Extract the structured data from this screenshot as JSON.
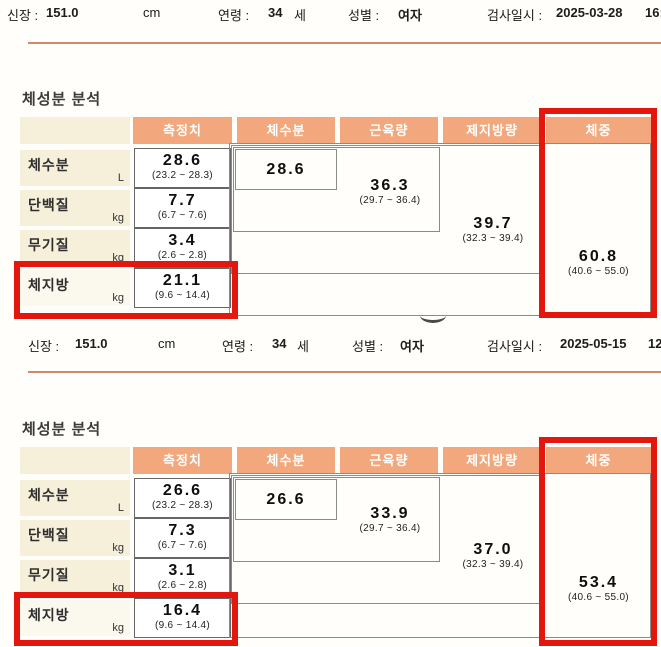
{
  "patient_rows": [
    {
      "height_label": "신장 :",
      "height_value": "151.0",
      "height_unit": "cm",
      "age_label": "연령 :",
      "age_value": "34",
      "age_unit": "세",
      "sex_label": "성별 :",
      "sex_value": "여자",
      "exam_label": "검사일시 :",
      "exam_date": "2025-03-28",
      "exam_time": "16:"
    },
    {
      "height_label": "신장 :",
      "height_value": "151.0",
      "height_unit": "cm",
      "age_label": "연령 :",
      "age_value": "34",
      "age_unit": "세",
      "sex_label": "성별 :",
      "sex_value": "여자",
      "exam_label": "검사일시 :",
      "exam_date": "2025-05-15",
      "exam_time": "12"
    }
  ],
  "tables": [
    {
      "title": "체성분 분석",
      "headers": [
        "측정치",
        "체수분",
        "근육량",
        "제지방량",
        "체중"
      ],
      "rows": [
        {
          "label": "체수분",
          "unit": "L",
          "value": "28.6",
          "range": "(23.2 ~ 28.3)"
        },
        {
          "label": "단백질",
          "unit": "kg",
          "value": "7.7",
          "range": "(6.7 ~ 7.6)"
        },
        {
          "label": "무기질",
          "unit": "kg",
          "value": "3.4",
          "range": "(2.6 ~ 2.8)"
        },
        {
          "label": "체지방",
          "unit": "kg",
          "value": "21.1",
          "range": "(9.6 ~ 14.4)"
        }
      ],
      "composition": {
        "body_water": {
          "value": "28.6"
        },
        "muscle": {
          "value": "36.3",
          "range": "(29.7 ~ 36.4)"
        },
        "lean_mass": {
          "value": "39.7",
          "range": "(32.3 ~ 39.4)"
        },
        "weight": {
          "value": "60.8",
          "range": "(40.6 ~ 55.0)"
        }
      }
    },
    {
      "title": "체성분 분석",
      "headers": [
        "측정치",
        "체수분",
        "근육량",
        "제지방량",
        "체중"
      ],
      "rows": [
        {
          "label": "체수분",
          "unit": "L",
          "value": "26.6",
          "range": "(23.2 ~ 28.3)"
        },
        {
          "label": "단백질",
          "unit": "kg",
          "value": "7.3",
          "range": "(6.7 ~ 7.6)"
        },
        {
          "label": "무기질",
          "unit": "kg",
          "value": "3.1",
          "range": "(2.6 ~ 2.8)"
        },
        {
          "label": "체지방",
          "unit": "kg",
          "value": "16.4",
          "range": "(9.6 ~ 14.4)"
        }
      ],
      "composition": {
        "body_water": {
          "value": "26.6"
        },
        "muscle": {
          "value": "33.9",
          "range": "(29.7 ~ 36.4)"
        },
        "lean_mass": {
          "value": "37.0",
          "range": "(32.3 ~ 39.4)"
        },
        "weight": {
          "value": "53.4",
          "range": "(40.6 ~ 55.0)"
        }
      }
    }
  ],
  "colors": {
    "header_orange": "#f2a87c",
    "label_cream": "#f6efda",
    "annotation_red": "#e3170d",
    "rule_orange": "#d08a6a"
  }
}
